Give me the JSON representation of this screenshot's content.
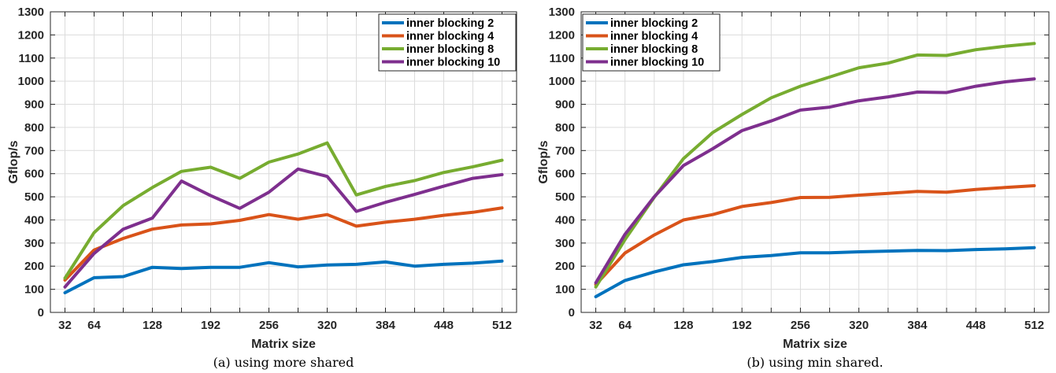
{
  "chart_data": [
    {
      "type": "line",
      "caption": "(a) using more shared",
      "xlabel": "Matrix size",
      "ylabel": "Gflop/s",
      "xlim": [
        16,
        528
      ],
      "ylim": [
        0,
        1300
      ],
      "xticks": [
        32,
        64,
        128,
        192,
        256,
        320,
        384,
        448,
        512
      ],
      "yticks": [
        0,
        100,
        200,
        300,
        400,
        500,
        600,
        700,
        800,
        900,
        1000,
        1100,
        1200,
        1300
      ],
      "grid": true,
      "legend_position": "top-right",
      "x": [
        32,
        64,
        96,
        128,
        160,
        192,
        224,
        256,
        288,
        320,
        352,
        384,
        416,
        448,
        480,
        512
      ],
      "series": [
        {
          "name": "inner blocking 2",
          "color": "#0072bd",
          "values": [
            85,
            150,
            155,
            195,
            190,
            195,
            195,
            215,
            197,
            205,
            208,
            218,
            200,
            208,
            213,
            222
          ]
        },
        {
          "name": "inner blocking 4",
          "color": "#d95319",
          "values": [
            140,
            270,
            320,
            360,
            378,
            383,
            398,
            423,
            403,
            423,
            373,
            390,
            403,
            420,
            433,
            452
          ]
        },
        {
          "name": "inner blocking 8",
          "color": "#77ac30",
          "values": [
            148,
            345,
            462,
            540,
            610,
            628,
            580,
            650,
            685,
            733,
            508,
            545,
            570,
            605,
            630,
            658
          ]
        },
        {
          "name": "inner blocking 10",
          "color": "#7e2f8e",
          "values": [
            110,
            255,
            360,
            408,
            568,
            505,
            450,
            520,
            620,
            588,
            437,
            476,
            510,
            546,
            580,
            596
          ]
        }
      ]
    },
    {
      "type": "line",
      "caption": "(b) using min shared.",
      "xlabel": "Matrix size",
      "ylabel": "Gflop/s",
      "xlim": [
        16,
        528
      ],
      "ylim": [
        0,
        1300
      ],
      "xticks": [
        32,
        64,
        128,
        192,
        256,
        320,
        384,
        448,
        512
      ],
      "yticks": [
        0,
        100,
        200,
        300,
        400,
        500,
        600,
        700,
        800,
        900,
        1000,
        1100,
        1200,
        1300
      ],
      "grid": true,
      "legend_position": "top-left",
      "x": [
        32,
        64,
        96,
        128,
        160,
        192,
        224,
        256,
        288,
        320,
        352,
        384,
        416,
        448,
        480,
        512
      ],
      "series": [
        {
          "name": "inner blocking 2",
          "color": "#0072bd",
          "values": [
            68,
            138,
            175,
            206,
            220,
            238,
            246,
            258,
            258,
            262,
            265,
            268,
            267,
            272,
            275,
            280
          ]
        },
        {
          "name": "inner blocking 4",
          "color": "#d95319",
          "values": [
            120,
            257,
            335,
            400,
            423,
            458,
            475,
            497,
            498,
            507,
            515,
            523,
            520,
            532,
            540,
            548
          ]
        },
        {
          "name": "inner blocking 8",
          "color": "#77ac30",
          "values": [
            110,
            315,
            498,
            665,
            778,
            856,
            928,
            978,
            1018,
            1058,
            1078,
            1113,
            1111,
            1136,
            1151,
            1163
          ]
        },
        {
          "name": "inner blocking 10",
          "color": "#7e2f8e",
          "values": [
            128,
            338,
            500,
            635,
            708,
            786,
            828,
            875,
            888,
            915,
            932,
            953,
            951,
            978,
            997,
            1010
          ]
        }
      ]
    }
  ]
}
